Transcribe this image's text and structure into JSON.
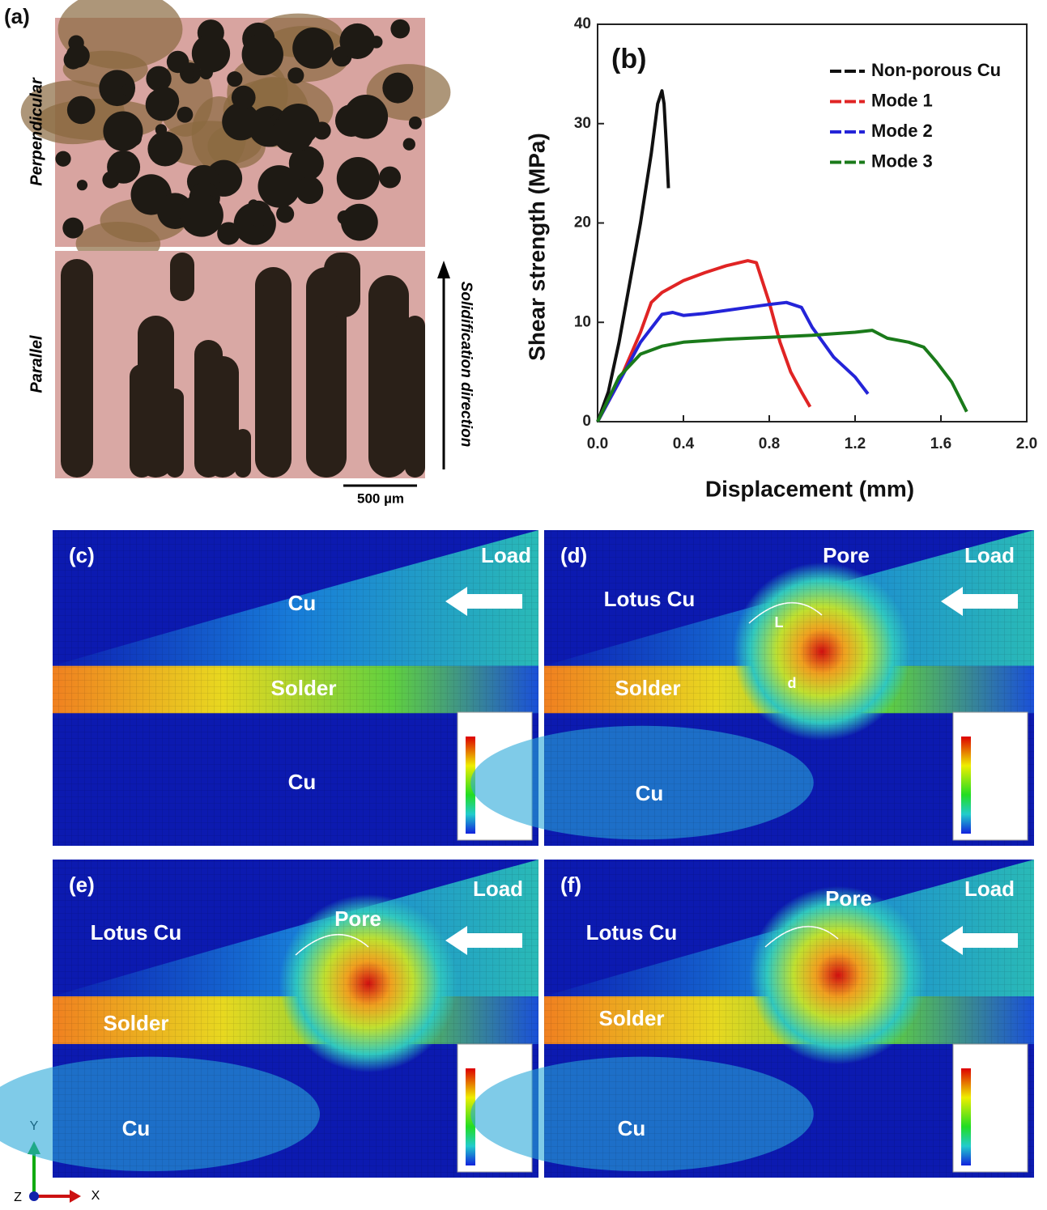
{
  "figure": {
    "panel_a": {
      "label": "(a)",
      "top": "Perpendicular",
      "bottom": "Parallel",
      "direction": "Solidification direction",
      "scale_bar": "500 µm"
    },
    "panels": [
      {
        "label": "(c)",
        "texts": [
          "Load",
          "Cu",
          "Solder",
          "Cu"
        ]
      },
      {
        "label": "(d)",
        "texts": [
          "Pore",
          "Load",
          "Lotus Cu",
          "L",
          "Solder",
          "d",
          "Cu"
        ]
      },
      {
        "label": "(e)",
        "texts": [
          "Load",
          "Lotus Cu",
          "Pore",
          "Solder",
          "Cu"
        ]
      },
      {
        "label": "(f)",
        "texts": [
          "Pore",
          "Load",
          "Lotus Cu",
          "Solder",
          "Cu"
        ]
      }
    ],
    "axes": {
      "y": "Y",
      "x": "X",
      "z": "Z"
    }
  },
  "chart_data": {
    "type": "line",
    "panel_label": "(b)",
    "x_label": "Displacement (mm)",
    "y_label": "Shear strength (MPa)",
    "xlim": [
      0,
      2.0
    ],
    "ylim": [
      0,
      40
    ],
    "xticks": [
      {
        "value": 0,
        "label": "0.0"
      },
      0.4,
      0.8,
      1.2,
      1.6,
      {
        "value": 2.0,
        "label": "2.0"
      }
    ],
    "yticks": [
      0,
      10,
      20,
      30,
      40
    ],
    "legend": "upper right",
    "series": [
      {
        "name": "Non-porous Cu",
        "color": "#111111",
        "x": [
          0,
          0.05,
          0.1,
          0.15,
          0.2,
          0.25,
          0.28,
          0.3,
          0.31,
          0.32,
          0.33
        ],
        "values": [
          0,
          3,
          8,
          14,
          20,
          27,
          32,
          33.3,
          32,
          28,
          23.5
        ]
      },
      {
        "name": "Mode 1",
        "color": "#e02424",
        "x": [
          0,
          0.1,
          0.2,
          0.25,
          0.3,
          0.4,
          0.5,
          0.6,
          0.7,
          0.74,
          0.8,
          0.85,
          0.9,
          0.95,
          0.99
        ],
        "values": [
          0,
          4,
          9,
          12,
          13,
          14.2,
          15,
          15.7,
          16.2,
          16,
          12,
          8,
          5,
          3,
          1.5
        ]
      },
      {
        "name": "Mode 2",
        "color": "#2424d8",
        "x": [
          0,
          0.1,
          0.2,
          0.3,
          0.35,
          0.4,
          0.5,
          0.6,
          0.7,
          0.8,
          0.88,
          0.95,
          1.0,
          1.05,
          1.1,
          1.2,
          1.26
        ],
        "values": [
          0,
          4,
          8,
          10.8,
          11,
          10.7,
          10.9,
          11.2,
          11.5,
          11.8,
          12,
          11.5,
          9.5,
          8,
          6.5,
          4.5,
          2.8
        ]
      },
      {
        "name": "Mode 3",
        "color": "#1a7a1a",
        "x": [
          0,
          0.1,
          0.2,
          0.3,
          0.4,
          0.6,
          0.8,
          1.0,
          1.2,
          1.28,
          1.35,
          1.45,
          1.52,
          1.58,
          1.65,
          1.72
        ],
        "values": [
          0,
          4.5,
          6.8,
          7.6,
          8,
          8.3,
          8.5,
          8.7,
          9,
          9.2,
          8.4,
          8,
          7.5,
          6,
          4,
          1
        ]
      }
    ]
  }
}
